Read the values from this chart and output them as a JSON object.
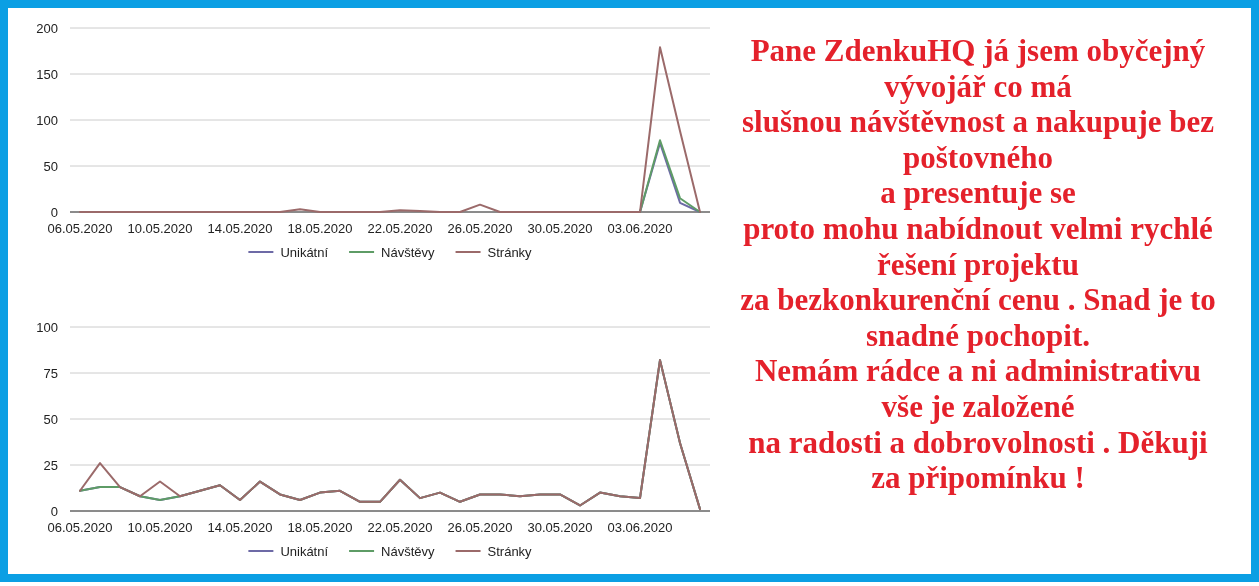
{
  "chart_data": [
    {
      "type": "line",
      "x": [
        "2020-05-06",
        "2020-05-07",
        "2020-05-08",
        "2020-05-09",
        "2020-05-10",
        "2020-05-11",
        "2020-05-12",
        "2020-05-13",
        "2020-05-14",
        "2020-05-15",
        "2020-05-16",
        "2020-05-17",
        "2020-05-18",
        "2020-05-19",
        "2020-05-20",
        "2020-05-21",
        "2020-05-22",
        "2020-05-23",
        "2020-05-24",
        "2020-05-25",
        "2020-05-26",
        "2020-05-27",
        "2020-05-28",
        "2020-05-29",
        "2020-05-30",
        "2020-05-31",
        "2020-06-01",
        "2020-06-02",
        "2020-06-03",
        "2020-06-04",
        "2020-06-05",
        "2020-06-06"
      ],
      "series": [
        {
          "name": "Unikátní",
          "color": "#6d6aa6",
          "values": [
            null,
            null,
            null,
            null,
            null,
            null,
            null,
            null,
            null,
            null,
            null,
            null,
            null,
            null,
            null,
            null,
            null,
            null,
            null,
            null,
            null,
            null,
            null,
            null,
            null,
            null,
            null,
            null,
            0,
            75,
            10,
            0
          ]
        },
        {
          "name": "Návštěvy",
          "color": "#5e9c66",
          "values": [
            null,
            null,
            null,
            null,
            null,
            null,
            null,
            null,
            null,
            null,
            null,
            null,
            null,
            null,
            null,
            null,
            null,
            null,
            null,
            null,
            null,
            null,
            null,
            null,
            null,
            null,
            null,
            null,
            0,
            78,
            15,
            0
          ]
        },
        {
          "name": "Stránky",
          "color": "#9b6a6a",
          "values": [
            0,
            0,
            0,
            0,
            0,
            0,
            0,
            0,
            0,
            0,
            0,
            3,
            0,
            0,
            0,
            0,
            2,
            1,
            0,
            0,
            8,
            0,
            0,
            0,
            0,
            0,
            0,
            0,
            0,
            179,
            88,
            0
          ]
        }
      ],
      "xlim": [
        "2020-05-05T12:00",
        "2020-06-06T12:00"
      ],
      "xticks": [
        {
          "value": "2020-05-06",
          "label": "06.05.2020"
        },
        {
          "value": "2020-05-10",
          "label": "10.05.2020"
        },
        {
          "value": "2020-05-14",
          "label": "14.05.2020"
        },
        {
          "value": "2020-05-18",
          "label": "18.05.2020"
        },
        {
          "value": "2020-05-22",
          "label": "22.05.2020"
        },
        {
          "value": "2020-05-26",
          "label": "26.05.2020"
        },
        {
          "value": "2020-05-30",
          "label": "30.05.2020"
        },
        {
          "value": "2020-06-03",
          "label": "03.06.2020"
        }
      ],
      "ylim": [
        0,
        200
      ],
      "yticks": [
        0,
        50,
        100,
        150,
        200
      ],
      "grid": "y",
      "legend": "bottom"
    },
    {
      "type": "line",
      "x": [
        "2020-05-06",
        "2020-05-07",
        "2020-05-08",
        "2020-05-09",
        "2020-05-10",
        "2020-05-11",
        "2020-05-12",
        "2020-05-13",
        "2020-05-14",
        "2020-05-15",
        "2020-05-16",
        "2020-05-17",
        "2020-05-18",
        "2020-05-19",
        "2020-05-20",
        "2020-05-21",
        "2020-05-22",
        "2020-05-23",
        "2020-05-24",
        "2020-05-25",
        "2020-05-26",
        "2020-05-27",
        "2020-05-28",
        "2020-05-29",
        "2020-05-30",
        "2020-05-31",
        "2020-06-01",
        "2020-06-02",
        "2020-06-03",
        "2020-06-04",
        "2020-06-05",
        "2020-06-06"
      ],
      "series": [
        {
          "name": "Unikátní",
          "color": "#6d6aa6",
          "values": [
            11,
            13,
            13,
            8,
            6,
            8,
            11,
            14,
            6,
            16,
            9,
            6,
            10,
            11,
            5,
            5,
            17,
            7,
            10,
            5,
            9,
            9,
            8,
            9,
            9,
            3,
            10,
            8,
            7,
            82,
            37,
            1
          ]
        },
        {
          "name": "Návštěvy",
          "color": "#5e9c66",
          "values": [
            11,
            13,
            13,
            8,
            6,
            8,
            11,
            14,
            6,
            16,
            9,
            6,
            10,
            11,
            5,
            5,
            17,
            7,
            10,
            5,
            9,
            9,
            8,
            9,
            9,
            3,
            10,
            8,
            7,
            82,
            37,
            1
          ]
        },
        {
          "name": "Stránky",
          "color": "#9b6a6a",
          "values": [
            11,
            26,
            13,
            8,
            16,
            8,
            11,
            14,
            6,
            16,
            9,
            6,
            10,
            11,
            5,
            5,
            17,
            7,
            10,
            5,
            9,
            9,
            8,
            9,
            9,
            3,
            10,
            8,
            7,
            82,
            37,
            1
          ]
        }
      ],
      "xlim": [
        "2020-05-05T12:00",
        "2020-06-06T12:00"
      ],
      "xticks": [
        {
          "value": "2020-05-06",
          "label": "06.05.2020"
        },
        {
          "value": "2020-05-10",
          "label": "10.05.2020"
        },
        {
          "value": "2020-05-14",
          "label": "14.05.2020"
        },
        {
          "value": "2020-05-18",
          "label": "18.05.2020"
        },
        {
          "value": "2020-05-22",
          "label": "22.05.2020"
        },
        {
          "value": "2020-05-26",
          "label": "26.05.2020"
        },
        {
          "value": "2020-05-30",
          "label": "30.05.2020"
        },
        {
          "value": "2020-06-03",
          "label": "03.06.2020"
        }
      ],
      "ylim": [
        0,
        100
      ],
      "yticks": [
        0,
        25,
        50,
        75,
        100
      ],
      "grid": "y",
      "legend": "bottom"
    },
    {
      "type": "other",
      "annotations": [
        "Pane ZdenkuHQ já jsem obyčejný",
        "vývojář co má",
        "slušnou návštěvnost a nakupuje bez",
        "poštovného",
        "a presentuje se",
        "proto mohu nabídnout velmi rychlé",
        "řešení projektu",
        "za bezkonkurenční cenu . Snad je to",
        "snadné pochopit.",
        "Nemám rádce a ni administrativu",
        "vše je založené",
        "na radosti a dobrovolnosti . Děkuji",
        "za připomínku !"
      ]
    }
  ]
}
